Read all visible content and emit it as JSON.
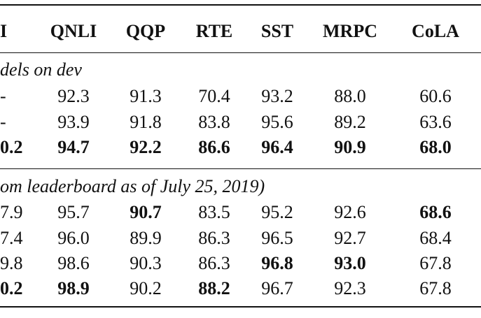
{
  "table": {
    "headers": [
      "I",
      "QNLI",
      "QQP",
      "RTE",
      "SST",
      "MRPC",
      "CoLA"
    ],
    "sections": [
      {
        "label": "dels on dev",
        "rows": [
          {
            "cells": [
              "-",
              "92.3",
              "91.3",
              "70.4",
              "93.2",
              "88.0",
              "60.6"
            ],
            "bold": [
              false,
              false,
              false,
              false,
              false,
              false,
              false
            ]
          },
          {
            "cells": [
              "-",
              "93.9",
              "91.8",
              "83.8",
              "95.6",
              "89.2",
              "63.6"
            ],
            "bold": [
              false,
              false,
              false,
              false,
              false,
              false,
              false
            ]
          },
          {
            "cells": [
              "0.2",
              "94.7",
              "92.2",
              "86.6",
              "96.4",
              "90.9",
              "68.0"
            ],
            "bold": [
              true,
              true,
              true,
              true,
              true,
              true,
              true
            ]
          }
        ]
      },
      {
        "label": "om leaderboard as of July 25, 2019)",
        "rows": [
          {
            "cells": [
              "7.9",
              "95.7",
              "90.7",
              "83.5",
              "95.2",
              "92.6",
              "68.6"
            ],
            "bold": [
              false,
              false,
              true,
              false,
              false,
              false,
              true
            ]
          },
          {
            "cells": [
              "7.4",
              "96.0",
              "89.9",
              "86.3",
              "96.5",
              "92.7",
              "68.4"
            ],
            "bold": [
              false,
              false,
              false,
              false,
              false,
              false,
              false
            ]
          },
          {
            "cells": [
              "9.8",
              "98.6",
              "90.3",
              "86.3",
              "96.8",
              "93.0",
              "67.8"
            ],
            "bold": [
              false,
              false,
              false,
              false,
              true,
              true,
              false
            ]
          },
          {
            "cells": [
              "0.2",
              "98.9",
              "90.2",
              "88.2",
              "96.7",
              "92.3",
              "67.8"
            ],
            "bold": [
              true,
              true,
              false,
              true,
              false,
              false,
              false
            ]
          }
        ]
      }
    ]
  }
}
